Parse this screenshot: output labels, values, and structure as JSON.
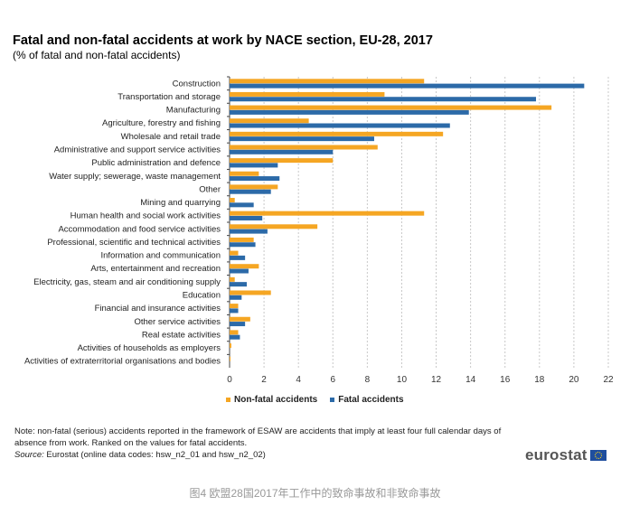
{
  "chart_data": {
    "type": "bar",
    "orientation": "horizontal",
    "title": "Fatal and non-fatal accidents at work by NACE section, EU-28, 2017",
    "subtitle": "(% of fatal and non-fatal accidents)",
    "categories": [
      "Construction",
      "Transportation and storage",
      "Manufacturing",
      "Agriculture, forestry and fishing",
      "Wholesale and retail trade",
      "Administrative and support service activities",
      "Public administration and defence",
      "Water supply; sewerage, waste management",
      "Other",
      "Mining and quarrying",
      "Human health and social work activities",
      "Accommodation and food service activities",
      "Professional, scientific and technical activities",
      "Information and communication",
      "Arts, entertainment and recreation",
      "Electricity, gas, steam and air conditioning supply",
      "Education",
      "Financial and insurance activities",
      "Other service activities",
      "Real estate activities",
      "Activities of households as employers",
      "Activities of extraterritorial organisations and bodies"
    ],
    "series": [
      {
        "name": "Non-fatal accidents",
        "color": "#f5a623",
        "values": [
          11.3,
          9.0,
          18.7,
          4.6,
          12.4,
          8.6,
          6.0,
          1.7,
          2.8,
          0.3,
          11.3,
          5.1,
          1.4,
          0.5,
          1.7,
          0.3,
          2.4,
          0.5,
          1.2,
          0.5,
          0.1,
          0.05
        ]
      },
      {
        "name": "Fatal accidents",
        "color": "#2c6aa8",
        "values": [
          20.6,
          17.8,
          13.9,
          12.8,
          8.4,
          6.0,
          2.8,
          2.9,
          2.4,
          1.4,
          1.9,
          2.2,
          1.5,
          0.9,
          1.1,
          1.0,
          0.7,
          0.5,
          0.9,
          0.6,
          0.0,
          0.0
        ]
      }
    ],
    "xlim": [
      0,
      22
    ],
    "xticks": [
      0,
      2,
      4,
      6,
      8,
      10,
      12,
      14,
      16,
      18,
      20,
      22
    ],
    "grid": "vertical dashed",
    "legend": "bottom"
  },
  "note": "Note: non-fatal (serious) accidents reported in the framework of ESAW are accidents that imply at least four full calendar days of absence from work. Ranked on the values for fatal accidents.",
  "source_label": "Source:",
  "source_text": " Eurostat (online data codes: hsw_n2_01 and hsw_n2_02)",
  "logo": "eurostat",
  "caption": "图4  欧盟28国2017年工作中的致命事故和非致命事故"
}
